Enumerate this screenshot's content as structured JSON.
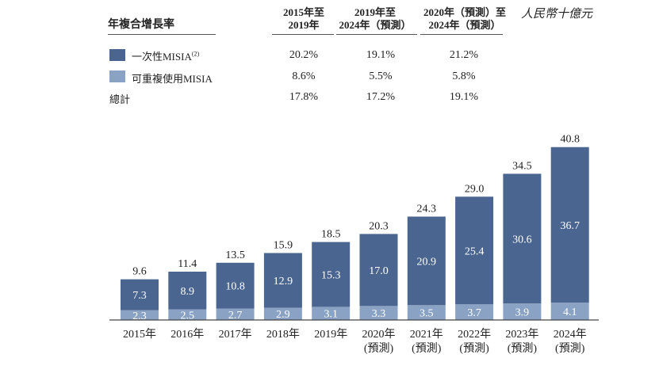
{
  "table": {
    "title": "年複合增長率",
    "unit": "人民幣十億元",
    "col_headers": [
      {
        "line1": "2015年至",
        "line2": "2019年"
      },
      {
        "line1": "2019年至",
        "line2": "2024年（預測）"
      },
      {
        "line1": "2020年（預測）至",
        "line2": "2024年（預測）"
      }
    ],
    "rows": [
      {
        "label": "一次性MISIA",
        "sup": "(2)",
        "color": "#4a6590",
        "values": [
          "20.2%",
          "19.1%",
          "21.2%"
        ]
      },
      {
        "label": "可重複使用MISIA",
        "sup": "",
        "color": "#8aa3c4",
        "values": [
          "8.6%",
          "5.5%",
          "5.8%"
        ]
      },
      {
        "label": "總計",
        "sup": "",
        "color": "",
        "values": [
          "17.8%",
          "17.2%",
          "19.1%"
        ]
      }
    ]
  },
  "chart_data": {
    "type": "bar",
    "stacked": true,
    "categories": [
      "2015年",
      "2016年",
      "2017年",
      "2018年",
      "2019年",
      "2020年\n(預測)",
      "2021年\n(預測)",
      "2022年\n(預測)",
      "2023年\n(預測)",
      "2024年\n(預測)"
    ],
    "series": [
      {
        "name": "可重複使用MISIA",
        "color": "#8aa3c4",
        "values": [
          2.3,
          2.5,
          2.7,
          2.9,
          3.1,
          3.3,
          3.5,
          3.7,
          3.9,
          4.1
        ]
      },
      {
        "name": "一次性MISIA",
        "color": "#4a6590",
        "values": [
          7.3,
          8.9,
          10.8,
          12.9,
          15.3,
          17.0,
          20.9,
          25.4,
          30.6,
          36.7
        ]
      }
    ],
    "totals": [
      9.6,
      11.4,
      13.5,
      15.9,
      18.5,
      20.3,
      24.3,
      29.0,
      34.5,
      40.8
    ],
    "ylim": [
      0,
      42
    ],
    "label_color_on_bar": "#ffffff"
  }
}
